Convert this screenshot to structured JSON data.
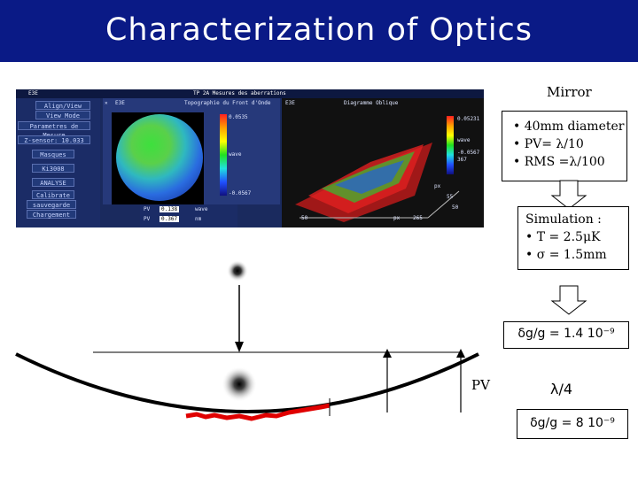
{
  "slide_title": "Characterization of Optics",
  "screenshot": {
    "window_title": "TP 2A Mesures des aberrations",
    "menu_label": "E3E",
    "left_panel_buttons": [
      "Align/View Mode",
      "View Mode",
      "Parametres de Mesure",
      "Z-sensor:  10.033",
      "Masques",
      "Ki3008",
      "ANALYSE",
      "Calibrate",
      "sauvegarde",
      "Chargement"
    ],
    "panel1_title": "Topographie du Front d'Onde",
    "panel2_title": "Diagramme Oblique",
    "scale1_top": "0.0535",
    "scale1_unit": "wave",
    "scale1_bottom": "-0.0567",
    "scale2_top": "0.05231",
    "scale2_unit": "wave",
    "scale2_bottom": "-0.0567",
    "scale2_extra": "367",
    "pv_label": "PV",
    "pv_value": "0.138",
    "pv_unit": "wave",
    "pv2_label": "PV",
    "pv2_value": "0.367",
    "pv2_unit": "nm",
    "axis_px1": "px",
    "axis_px2": "px",
    "tick_a": "50",
    "tick_b": "265",
    "tick_c": "50",
    "tick_d": "55"
  },
  "mirror_label": "Mirror",
  "mirror_specs": [
    "• 40mm diameter",
    "• PV= λ/10",
    "• RMS =λ/100"
  ],
  "simulation": [
    "Simulation :",
    "• T = 2.5μK",
    "• σ = 1.5mm"
  ],
  "dg_result_1": "δg/g = 1.4 10⁻⁹",
  "lambda_quarter": "λ/4",
  "dg_result_2": "δg/g = 8 10⁻⁹",
  "pv_label": "PV",
  "colors": {
    "title_bar": "#0a1a86",
    "red_curve": "#e00000"
  }
}
